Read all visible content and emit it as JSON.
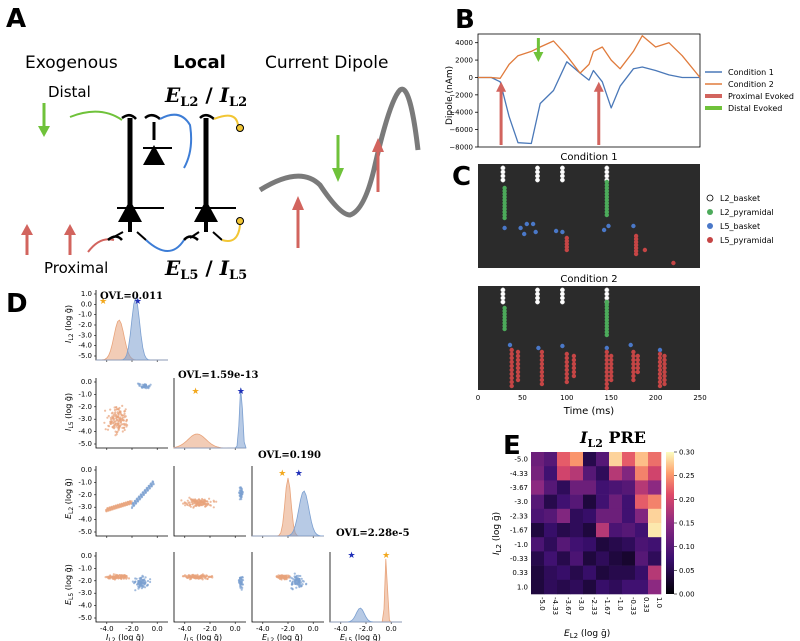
{
  "panels": {
    "a": "A",
    "b": "B",
    "c": "C",
    "d": "D",
    "e": "E"
  },
  "panel_a": {
    "exogenous": "Exogenous",
    "local": "Local",
    "current_dipole": "Current Dipole",
    "distal": "Distal",
    "proximal": "Proximal",
    "el2": "E",
    "el2_sub": "L2",
    "sep": " / ",
    "il2": "I",
    "il2_sub": "L2",
    "el5": "E",
    "el5_sub": "L5",
    "il5": "I",
    "il5_sub": "L5",
    "colors": {
      "green": "#6fc23a",
      "red": "#d2645e",
      "blue": "#3d7dd6",
      "yellow": "#f2c634",
      "gray": "#7a7a7a"
    }
  },
  "panel_b": {
    "ylabel": "Dipole (nAm)",
    "yticks": [
      "4000",
      "2000",
      "0",
      "−2000",
      "−4000",
      "−6000",
      "−8000"
    ],
    "legend": [
      "Condition 1",
      "Condition 2",
      "Proximal Evoked",
      "Distal Evoked"
    ],
    "colors": {
      "cond1": "#4a78b8",
      "cond2": "#e07b3c",
      "prox": "#d2645e",
      "dist": "#6fc23a"
    }
  },
  "panel_c": {
    "title1": "Condition 1",
    "title2": "Condition 2",
    "xlabel": "Time (ms)",
    "xticks": [
      "0",
      "50",
      "100",
      "150",
      "200",
      "250"
    ],
    "legend": [
      "L2_basket",
      "L2_pyramidal",
      "L5_basket",
      "L5_pyramidal"
    ],
    "colors": {
      "l2b": "#ffffff",
      "l2p": "#4caa5a",
      "l5b": "#4a78c8",
      "l5p": "#c54545",
      "bg": "#2b2b2b"
    }
  },
  "panel_d": {
    "ovl": [
      "OVL=0.011",
      "OVL=1.59e-13",
      "OVL=0.190",
      "OVL=2.28e-5"
    ],
    "row_labels": [
      "I",
      "I",
      "E",
      "E"
    ],
    "row_subs": [
      "L2",
      "L5",
      "L2",
      "L5"
    ],
    "g_unit": "(log ḡ)",
    "yticks_top": [
      "1.0",
      "0.0",
      "-1.0",
      "-2.0",
      "-3.0",
      "-4.0",
      "-5.0"
    ],
    "yticks_row": [
      "0.0",
      "-1.0",
      "-2.0",
      "-3.0",
      "-4.0",
      "-5.0"
    ],
    "xticks": [
      "-4.0",
      "-2.0",
      "0.0"
    ],
    "colors": {
      "orange": "#e8a37a",
      "blue": "#7b9fd0",
      "star_o": "#f2a81d",
      "star_b": "#1f2fb8"
    }
  },
  "panel_e": {
    "title": "I",
    "title_sub": "L2",
    "title_suffix": " PRE",
    "ylabel": "I",
    "ylabel_sub": "L2",
    "xlabel": "E",
    "xlabel_sub": "L2",
    "unit": " (log ḡ)",
    "ticks": [
      "-5.0",
      "-4.33",
      "-3.67",
      "-3.0",
      "-2.33",
      "-1.67",
      "-1.0",
      "-0.33",
      "0.33",
      "1.0"
    ],
    "cbar_ticks": [
      "0.30",
      "0.25",
      "0.20",
      "0.15",
      "0.10",
      "0.05",
      "0.00"
    ],
    "matrix": [
      [
        0.12,
        0.1,
        0.22,
        0.25,
        0.05,
        0.1,
        0.28,
        0.22,
        0.27,
        0.23
      ],
      [
        0.13,
        0.08,
        0.2,
        0.18,
        0.1,
        0.06,
        0.18,
        0.14,
        0.24,
        0.2
      ],
      [
        0.15,
        0.1,
        0.06,
        0.12,
        0.12,
        0.08,
        0.09,
        0.1,
        0.18,
        0.15
      ],
      [
        0.1,
        0.05,
        0.08,
        0.1,
        0.04,
        0.08,
        0.12,
        0.08,
        0.22,
        0.24
      ],
      [
        0.09,
        0.1,
        0.14,
        0.06,
        0.07,
        0.12,
        0.12,
        0.08,
        0.14,
        0.28
      ],
      [
        0.04,
        0.07,
        0.05,
        0.06,
        0.04,
        0.18,
        0.09,
        0.1,
        0.08,
        0.29
      ],
      [
        0.09,
        0.06,
        0.1,
        0.08,
        0.07,
        0.04,
        0.05,
        0.06,
        0.09,
        0.08
      ],
      [
        0.05,
        0.08,
        0.05,
        0.09,
        0.04,
        0.06,
        0.04,
        0.03,
        0.1,
        0.06
      ],
      [
        0.04,
        0.06,
        0.07,
        0.05,
        0.07,
        0.04,
        0.05,
        0.05,
        0.07,
        0.18
      ],
      [
        0.04,
        0.06,
        0.05,
        0.06,
        0.04,
        0.07,
        0.06,
        0.08,
        0.08,
        0.15
      ]
    ]
  },
  "chart_data": [
    {
      "type": "line",
      "title": "",
      "xlabel": "",
      "ylabel": "Dipole (nAm)",
      "ylim": [
        -8000,
        5000
      ],
      "x": [
        0,
        15,
        25,
        35,
        45,
        60,
        70,
        85,
        100,
        115,
        125,
        130,
        140,
        150,
        160,
        175,
        185,
        200,
        215,
        230,
        250
      ],
      "series": [
        {
          "name": "Condition 1",
          "values": [
            0,
            0,
            -500,
            -4500,
            -7500,
            -7600,
            -3000,
            -1500,
            1800,
            500,
            -300,
            800,
            -500,
            -3500,
            -1000,
            1000,
            1200,
            800,
            300,
            0,
            0
          ]
        },
        {
          "name": "Condition 2",
          "values": [
            0,
            0,
            -100,
            1500,
            2500,
            3000,
            3500,
            4200,
            2500,
            500,
            1500,
            3000,
            3500,
            2000,
            1000,
            3000,
            4800,
            3500,
            4000,
            2500,
            0
          ]
        }
      ],
      "events": {
        "Proximal Evoked": [
          26,
          136
        ],
        "Distal Evoked": [
          68
        ]
      }
    },
    {
      "type": "heatmap",
      "title": "I_L2 PRE",
      "xlabel": "E_L2 (log g)",
      "ylabel": "I_L2 (log g)",
      "x": [
        "-5.0",
        "-4.33",
        "-3.67",
        "-3.0",
        "-2.33",
        "-1.67",
        "-1.0",
        "-0.33",
        "0.33",
        "1.0"
      ],
      "y": [
        "-5.0",
        "-4.33",
        "-3.67",
        "-3.0",
        "-2.33",
        "-1.67",
        "-1.0",
        "-0.33",
        "0.33",
        "1.0"
      ],
      "ylim": [
        0,
        0.3
      ]
    }
  ]
}
